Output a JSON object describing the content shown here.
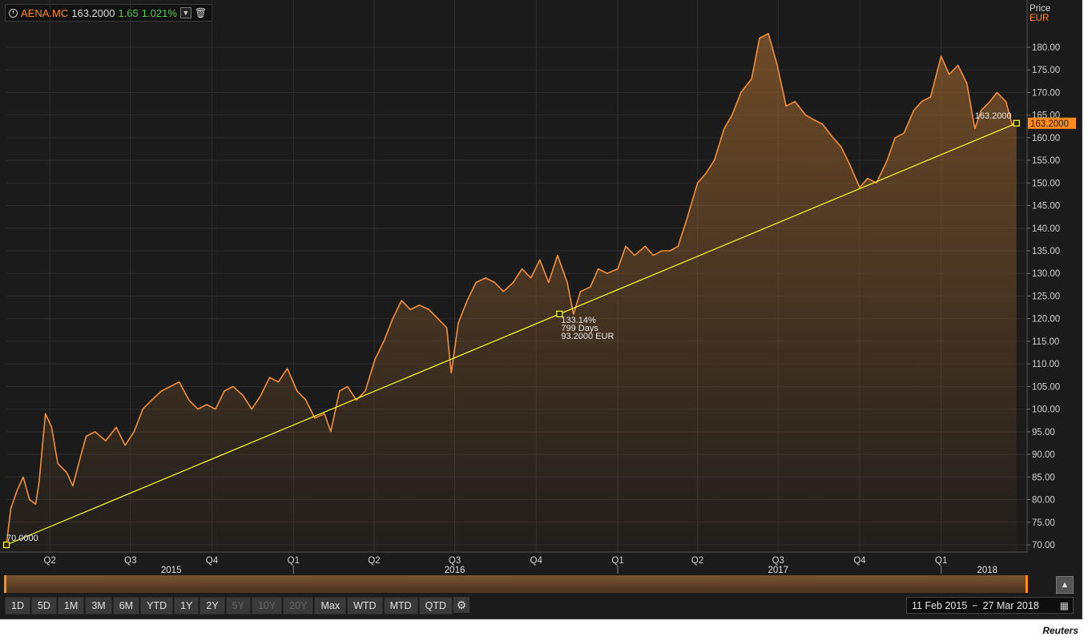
{
  "quote": {
    "symbol": "AENA.MC",
    "price": "163.2000",
    "change": "1.65",
    "change_pct": "1.021%"
  },
  "colors": {
    "accent": "#ff8c1a",
    "line": "#f28f3b",
    "trend": "#ffff33",
    "up": "#4fd24f"
  },
  "chart_data": {
    "type": "area",
    "ylabel": "Price",
    "unit": "EUR",
    "ylim": [
      70,
      183
    ],
    "yticks": [
      "70.00",
      "75.00",
      "80.00",
      "85.00",
      "90.00",
      "95.00",
      "100.00",
      "105.00",
      "110.00",
      "115.00",
      "120.00",
      "125.00",
      "130.00",
      "135.00",
      "140.00",
      "145.00",
      "150.00",
      "155.00",
      "160.00",
      "165.00",
      "170.00",
      "175.00",
      "180.00"
    ],
    "xlim": [
      "2015-02-11",
      "2018-04-08"
    ],
    "quarters": [
      {
        "label": "Q2",
        "date": "2015-04-01"
      },
      {
        "label": "Q3",
        "date": "2015-07-01"
      },
      {
        "label": "Q4",
        "date": "2015-10-01"
      },
      {
        "label": "Q1",
        "date": "2016-01-01"
      },
      {
        "label": "Q2",
        "date": "2016-04-01"
      },
      {
        "label": "Q3",
        "date": "2016-07-01"
      },
      {
        "label": "Q4",
        "date": "2016-10-01"
      },
      {
        "label": "Q1",
        "date": "2017-01-01"
      },
      {
        "label": "Q2",
        "date": "2017-04-01"
      },
      {
        "label": "Q3",
        "date": "2017-07-01"
      },
      {
        "label": "Q4",
        "date": "2017-10-01"
      },
      {
        "label": "Q1",
        "date": "2018-01-01"
      }
    ],
    "years": [
      {
        "label": "2015",
        "date": "2015-08-16"
      },
      {
        "label": "2016",
        "date": "2016-07-01"
      },
      {
        "label": "2017",
        "date": "2017-07-01"
      },
      {
        "label": "2018",
        "date": "2018-02-22"
      }
    ],
    "series": [
      {
        "points": [
          [
            "2015-02-11",
            70
          ],
          [
            "2015-02-16",
            78
          ],
          [
            "2015-02-23",
            82
          ],
          [
            "2015-03-02",
            85
          ],
          [
            "2015-03-09",
            80
          ],
          [
            "2015-03-16",
            79
          ],
          [
            "2015-03-20",
            84
          ],
          [
            "2015-03-27",
            99
          ],
          [
            "2015-04-03",
            96
          ],
          [
            "2015-04-10",
            88
          ],
          [
            "2015-04-20",
            86
          ],
          [
            "2015-04-27",
            83
          ],
          [
            "2015-05-05",
            89
          ],
          [
            "2015-05-12",
            94
          ],
          [
            "2015-05-22",
            95
          ],
          [
            "2015-06-03",
            93
          ],
          [
            "2015-06-15",
            96
          ],
          [
            "2015-06-25",
            92
          ],
          [
            "2015-07-05",
            95
          ],
          [
            "2015-07-15",
            100
          ],
          [
            "2015-07-25",
            102
          ],
          [
            "2015-08-05",
            104
          ],
          [
            "2015-08-15",
            105
          ],
          [
            "2015-08-25",
            106
          ],
          [
            "2015-09-05",
            102
          ],
          [
            "2015-09-15",
            100
          ],
          [
            "2015-09-25",
            101
          ],
          [
            "2015-10-05",
            100
          ],
          [
            "2015-10-15",
            104
          ],
          [
            "2015-10-25",
            105
          ],
          [
            "2015-11-05",
            103
          ],
          [
            "2015-11-15",
            100
          ],
          [
            "2015-11-25",
            103
          ],
          [
            "2015-12-05",
            107
          ],
          [
            "2015-12-15",
            106
          ],
          [
            "2015-12-25",
            109
          ],
          [
            "2016-01-05",
            104
          ],
          [
            "2016-01-15",
            102
          ],
          [
            "2016-01-25",
            98
          ],
          [
            "2016-02-05",
            99
          ],
          [
            "2016-02-12",
            95
          ],
          [
            "2016-02-22",
            104
          ],
          [
            "2016-03-02",
            105
          ],
          [
            "2016-03-12",
            102
          ],
          [
            "2016-03-22",
            104
          ],
          [
            "2016-04-02",
            111
          ],
          [
            "2016-04-12",
            115
          ],
          [
            "2016-04-22",
            120
          ],
          [
            "2016-05-02",
            124
          ],
          [
            "2016-05-12",
            122
          ],
          [
            "2016-05-22",
            123
          ],
          [
            "2016-06-02",
            122
          ],
          [
            "2016-06-12",
            120
          ],
          [
            "2016-06-22",
            118
          ],
          [
            "2016-06-27",
            108
          ],
          [
            "2016-07-05",
            119
          ],
          [
            "2016-07-15",
            124
          ],
          [
            "2016-07-25",
            128
          ],
          [
            "2016-08-05",
            129
          ],
          [
            "2016-08-15",
            128
          ],
          [
            "2016-08-25",
            126
          ],
          [
            "2016-09-05",
            128
          ],
          [
            "2016-09-15",
            131
          ],
          [
            "2016-09-25",
            129
          ],
          [
            "2016-10-05",
            133
          ],
          [
            "2016-10-15",
            128
          ],
          [
            "2016-10-25",
            134
          ],
          [
            "2016-11-05",
            128
          ],
          [
            "2016-11-12",
            121
          ],
          [
            "2016-11-20",
            126
          ],
          [
            "2016-12-01",
            127
          ],
          [
            "2016-12-10",
            131
          ],
          [
            "2016-12-20",
            130
          ],
          [
            "2017-01-01",
            131
          ],
          [
            "2017-01-10",
            136
          ],
          [
            "2017-01-20",
            134
          ],
          [
            "2017-02-01",
            136
          ],
          [
            "2017-02-10",
            134
          ],
          [
            "2017-02-20",
            135
          ],
          [
            "2017-03-01",
            135
          ],
          [
            "2017-03-10",
            136
          ],
          [
            "2017-03-20",
            142
          ],
          [
            "2017-04-01",
            150
          ],
          [
            "2017-04-10",
            152
          ],
          [
            "2017-04-20",
            155
          ],
          [
            "2017-05-01",
            162
          ],
          [
            "2017-05-10",
            165
          ],
          [
            "2017-05-20",
            170
          ],
          [
            "2017-06-01",
            173
          ],
          [
            "2017-06-10",
            182
          ],
          [
            "2017-06-20",
            183
          ],
          [
            "2017-06-30",
            176
          ],
          [
            "2017-07-10",
            167
          ],
          [
            "2017-07-20",
            168
          ],
          [
            "2017-08-01",
            165
          ],
          [
            "2017-08-10",
            164
          ],
          [
            "2017-08-20",
            163
          ],
          [
            "2017-09-01",
            160
          ],
          [
            "2017-09-10",
            158
          ],
          [
            "2017-09-20",
            154
          ],
          [
            "2017-10-01",
            149
          ],
          [
            "2017-10-10",
            151
          ],
          [
            "2017-10-20",
            150
          ],
          [
            "2017-11-01",
            155
          ],
          [
            "2017-11-10",
            160
          ],
          [
            "2017-11-20",
            161
          ],
          [
            "2017-12-01",
            166
          ],
          [
            "2017-12-10",
            168
          ],
          [
            "2017-12-20",
            169
          ],
          [
            "2018-01-01",
            178
          ],
          [
            "2018-01-10",
            174
          ],
          [
            "2018-01-20",
            176
          ],
          [
            "2018-01-30",
            172
          ],
          [
            "2018-02-08",
            162
          ],
          [
            "2018-02-15",
            166
          ],
          [
            "2018-02-25",
            168
          ],
          [
            "2018-03-05",
            170
          ],
          [
            "2018-03-15",
            168
          ],
          [
            "2018-03-22",
            163
          ],
          [
            "2018-03-27",
            163.2
          ]
        ]
      }
    ],
    "annotations": {
      "start_label": "70.0000",
      "end_label": "163.2000",
      "last_price_tag": "163.2000",
      "mid_lines": [
        "133.14%",
        "799 Days",
        "93.2000 EUR"
      ]
    }
  },
  "ranges": [
    "1D",
    "5D",
    "1M",
    "3M",
    "6M",
    "YTD",
    "1Y",
    "2Y",
    "5Y",
    "10Y",
    "20Y",
    "Max",
    "WTD",
    "MTD",
    "QTD"
  ],
  "ranges_disabled": [
    "5Y",
    "10Y",
    "20Y"
  ],
  "date_range": {
    "from": "11 Feb 2015",
    "sep": "−",
    "to": "27 Mar 2018"
  },
  "source": "Reuters"
}
